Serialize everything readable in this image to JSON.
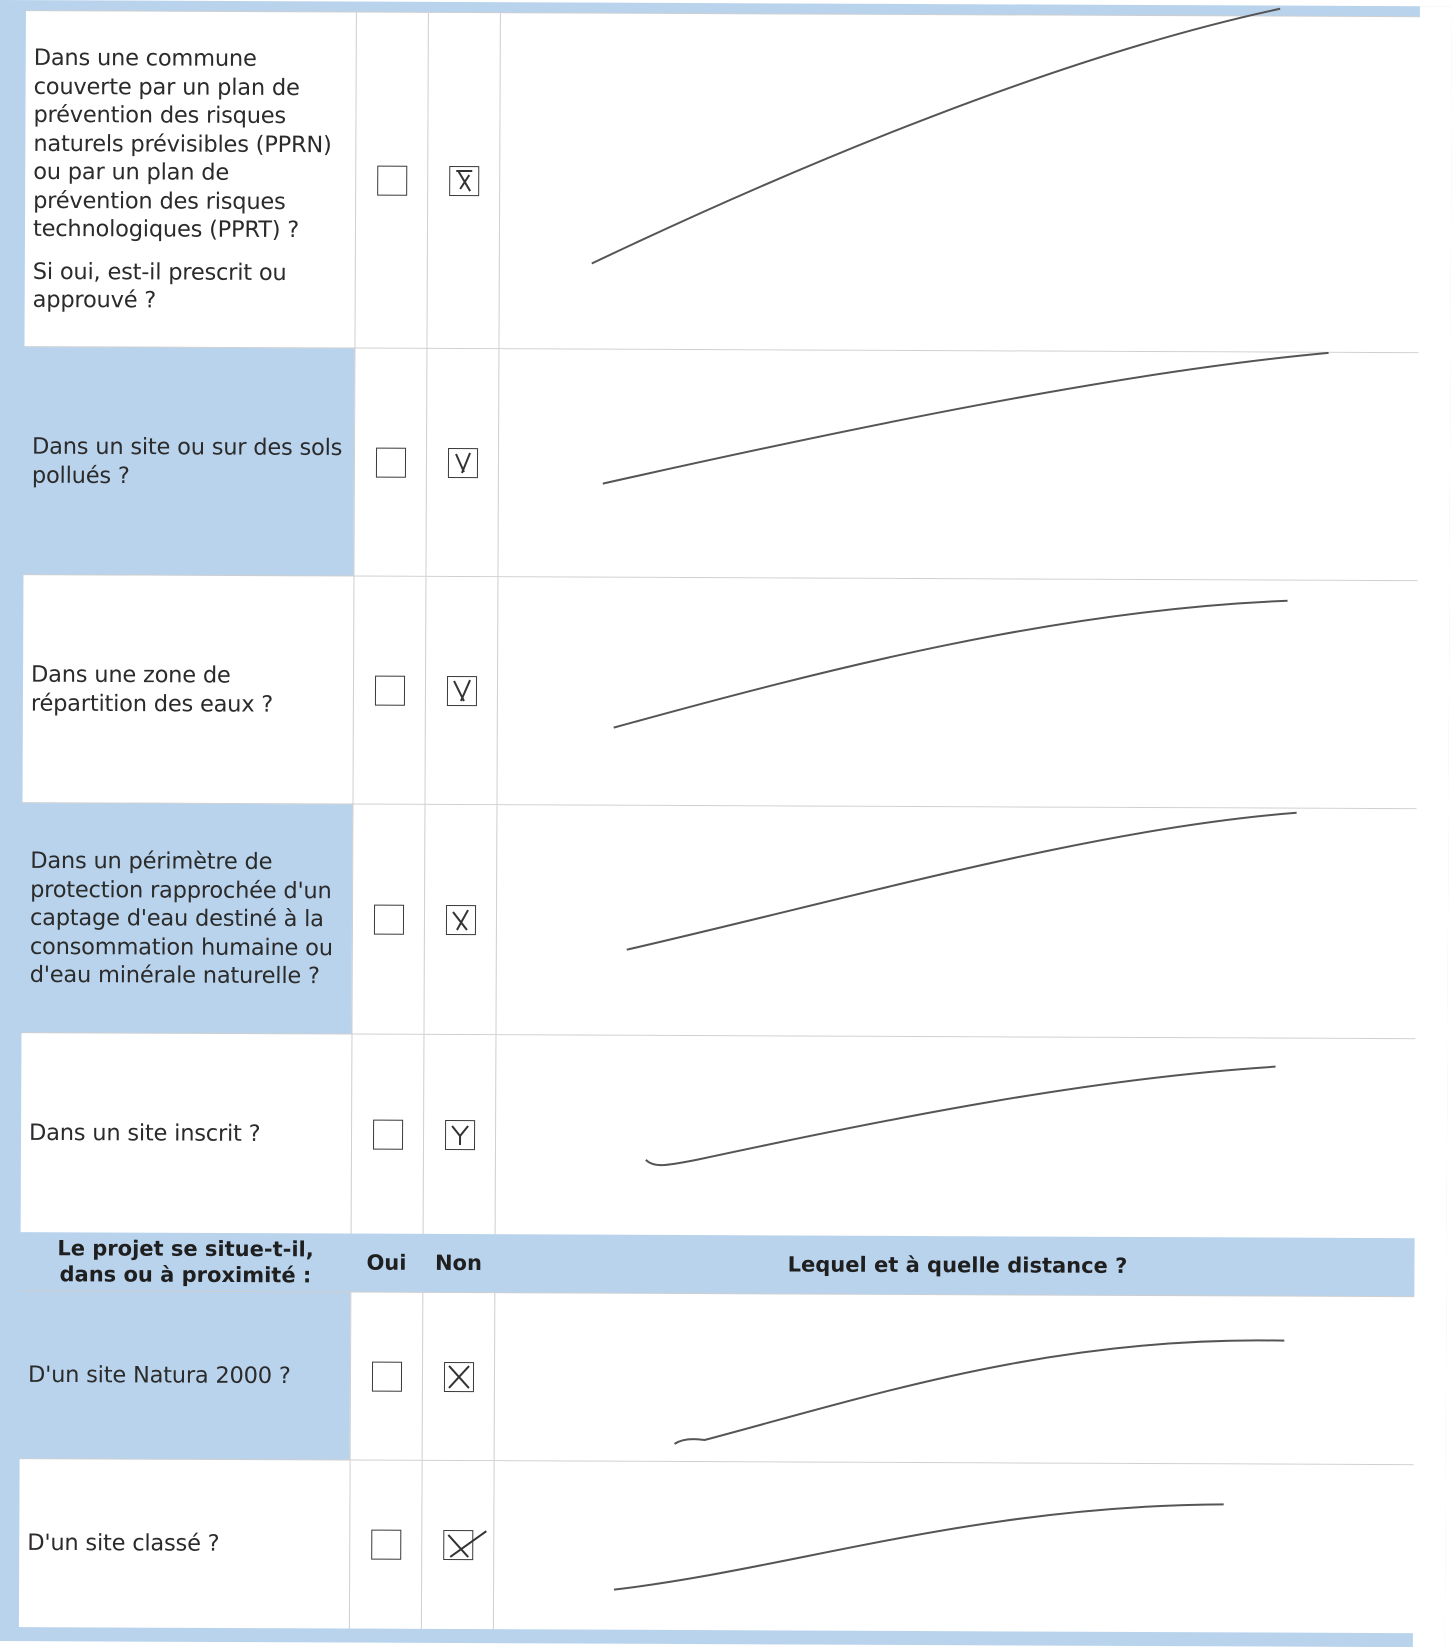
{
  "rows_top": [
    {
      "id": "pprn",
      "question": [
        "Dans une commune couverte par un plan de prévention des risques naturels prévisibles (PPRN) ou par un plan de prévention des risques technologiques (PPRT) ?",
        "Si oui, est-il prescrit ou approuvé ?"
      ],
      "oui": false,
      "non": true
    },
    {
      "id": "sols-pollues",
      "question": [
        "Dans un site ou sur des sols pollués ?"
      ],
      "oui": false,
      "non": true
    },
    {
      "id": "zone-eaux",
      "question": [
        "Dans une zone de répartition des eaux ?"
      ],
      "oui": false,
      "non": true
    },
    {
      "id": "captage",
      "question": [
        "Dans un périmètre de protection rapprochée d'un captage d'eau destiné à la consommation humaine ou d'eau minérale naturelle ?"
      ],
      "oui": false,
      "non": true
    },
    {
      "id": "site-inscrit",
      "question": [
        "Dans un site inscrit ?"
      ],
      "oui": false,
      "non": true
    }
  ],
  "header": {
    "question": "Le projet se situe-t-il, dans ou à proximité :",
    "oui": "Oui",
    "non": "Non",
    "answer": "Lequel et à quelle distance ?"
  },
  "rows_bottom": [
    {
      "id": "natura-2000",
      "question": [
        "D'un site Natura 2000 ?"
      ],
      "oui": false,
      "non": true
    },
    {
      "id": "site-classe",
      "question": [
        "D'un site classé ?"
      ],
      "oui": false,
      "non": true
    }
  ],
  "colors": {
    "blue_band": "#b9d3ec",
    "ink": "#3a3a3a"
  }
}
